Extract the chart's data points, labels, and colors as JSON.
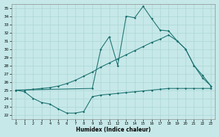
{
  "xlabel": "Humidex (Indice chaleur)",
  "xlim": [
    -0.5,
    23.5
  ],
  "ylim": [
    21.5,
    35.5
  ],
  "yticks": [
    22,
    23,
    24,
    25,
    26,
    27,
    28,
    29,
    30,
    31,
    32,
    33,
    34,
    35
  ],
  "xticks": [
    0,
    1,
    2,
    3,
    4,
    5,
    6,
    7,
    8,
    9,
    10,
    11,
    12,
    13,
    14,
    15,
    16,
    17,
    18,
    19,
    20,
    21,
    22,
    23
  ],
  "bg_color": "#c6e8e8",
  "grid_color": "#aad4d4",
  "line_color": "#1a7070",
  "line1_x": [
    0,
    1,
    2,
    3,
    4,
    5,
    6,
    7,
    8,
    9,
    10,
    11,
    12,
    13,
    14,
    15,
    16,
    17,
    18,
    19,
    20,
    21,
    22,
    23
  ],
  "line1_y": [
    25.0,
    24.8,
    24.0,
    23.5,
    23.3,
    22.7,
    22.2,
    22.2,
    22.4,
    24.2,
    24.4,
    24.5,
    24.6,
    24.7,
    24.8,
    24.9,
    25.0,
    25.1,
    25.2,
    25.2,
    25.2,
    25.2,
    25.2,
    25.2
  ],
  "line2_x": [
    0,
    1,
    2,
    3,
    4,
    5,
    6,
    7,
    8,
    9,
    10,
    11,
    12,
    13,
    14,
    15,
    16,
    17,
    18,
    19,
    20,
    21,
    22,
    23
  ],
  "line2_y": [
    25.0,
    25.0,
    25.1,
    25.2,
    25.3,
    25.5,
    25.8,
    26.2,
    26.7,
    27.2,
    27.8,
    28.3,
    28.8,
    29.3,
    29.8,
    30.3,
    30.8,
    31.2,
    31.7,
    31.0,
    30.0,
    28.0,
    26.8,
    25.5
  ],
  "line3_x": [
    0,
    9,
    10,
    11,
    12,
    13,
    14,
    15,
    16,
    17,
    18,
    19,
    20,
    21,
    22,
    23
  ],
  "line3_y": [
    25.0,
    25.2,
    30.0,
    31.5,
    28.0,
    34.0,
    33.8,
    35.2,
    33.7,
    32.3,
    32.2,
    31.0,
    30.0,
    28.0,
    26.5,
    25.5
  ]
}
